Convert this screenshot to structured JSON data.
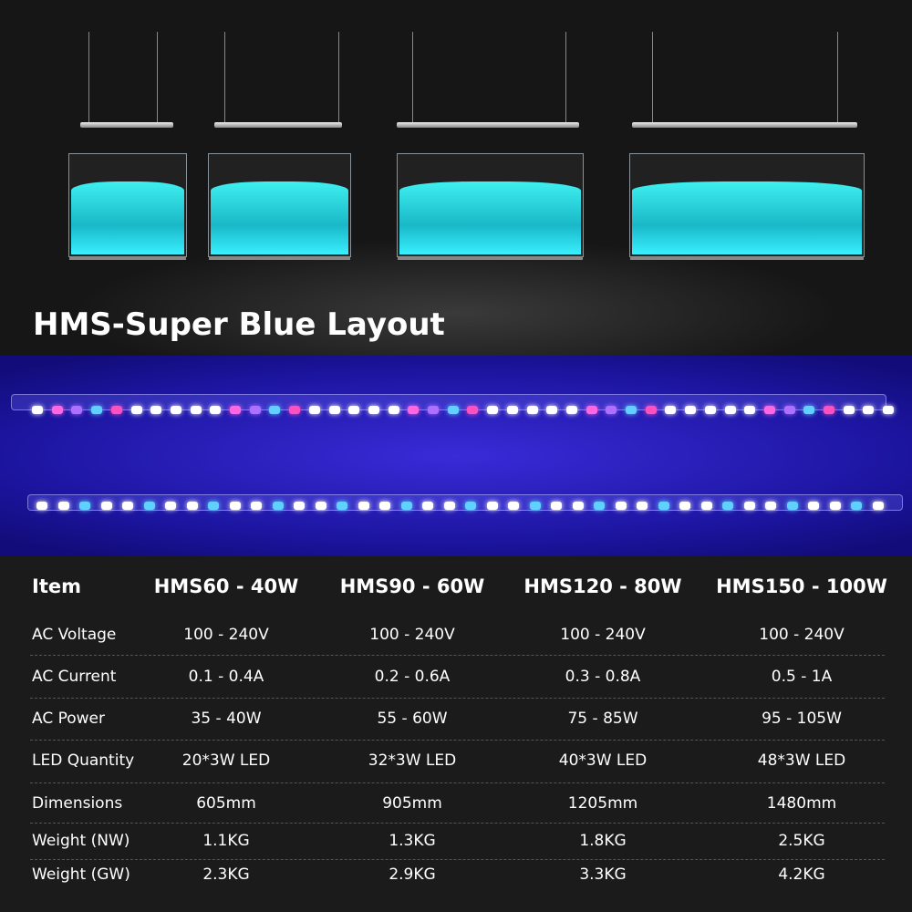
{
  "title": "HMS-Super Blue Layout",
  "colors": {
    "water": "#2fe0e8",
    "background": "#1b1b1b",
    "blue_light": "#2a20c0"
  },
  "table": {
    "headers": [
      "Item",
      "HMS60 - 40W",
      "HMS90 - 60W",
      "HMS120 - 80W",
      "HMS150 - 100W"
    ],
    "rows": [
      [
        "AC Voltage",
        "100 - 240V",
        "100 - 240V",
        "100 - 240V",
        "100 - 240V"
      ],
      [
        "AC Current",
        "0.1 - 0.4A",
        "0.2 - 0.6A",
        "0.3 - 0.8A",
        "0.5 - 1A"
      ],
      [
        "AC Power",
        "35 - 40W",
        "55 - 60W",
        "75 - 85W",
        "95 - 105W"
      ],
      [
        "LED Quantity",
        "20*3W LED",
        "32*3W LED",
        "40*3W LED",
        "48*3W LED"
      ],
      [
        "Dimensions",
        "605mm",
        "905mm",
        "1205mm",
        "1480mm"
      ],
      [
        "Weight (NW)",
        "1.1KG",
        "1.3KG",
        "1.8KG",
        "2.5KG"
      ],
      [
        "Weight (GW)",
        "2.3KG",
        "2.9KG",
        "3.3KG",
        "4.2KG"
      ]
    ]
  }
}
